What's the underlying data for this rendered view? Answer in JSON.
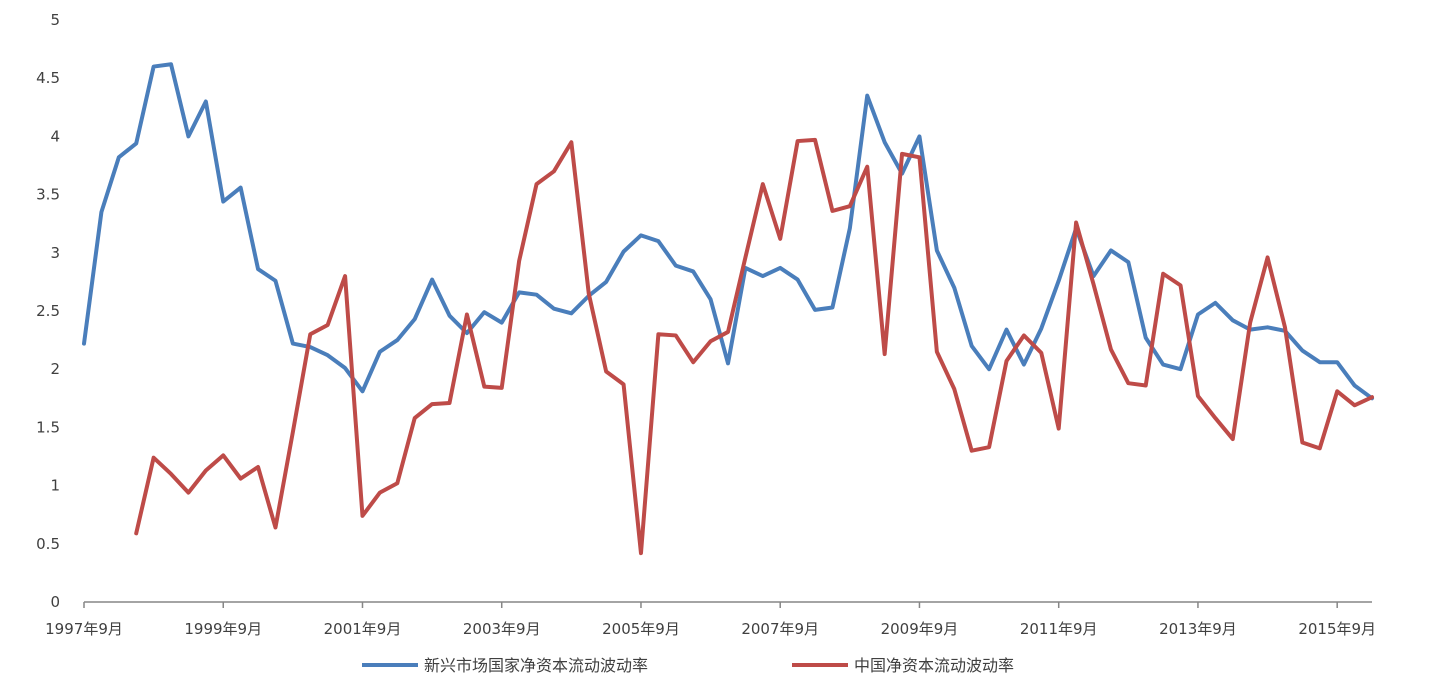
{
  "chart_data": {
    "type": "line",
    "title": "",
    "xlabel": "",
    "ylabel": "",
    "ylim": [
      0,
      5
    ],
    "y_ticks": [
      0,
      0.5,
      1,
      1.5,
      2,
      2.5,
      3,
      3.5,
      4,
      4.5,
      5
    ],
    "y_tick_labels": [
      "0",
      "0.5",
      "1",
      "1.5",
      "2",
      "2.5",
      "3",
      "3.5",
      "4",
      "4.5",
      "5"
    ],
    "x_tick_labels": [
      "1997年9月",
      "1999年9月",
      "2001年9月",
      "2003年9月",
      "2005年9月",
      "2007年9月",
      "2009年9月",
      "2011年9月",
      "2013年9月",
      "2015年9月"
    ],
    "x_tick_every": 8,
    "grid": false,
    "legend_position": "bottom",
    "series": [
      {
        "name": "新兴市场国家净资本流动波动率",
        "color": "#4a7ebb",
        "values": [
          2.22,
          3.35,
          3.82,
          3.94,
          4.6,
          4.62,
          4.0,
          4.3,
          3.44,
          3.56,
          2.86,
          2.76,
          2.22,
          2.19,
          2.12,
          2.01,
          1.81,
          2.15,
          2.25,
          2.43,
          2.77,
          2.46,
          2.31,
          2.49,
          2.4,
          2.66,
          2.64,
          2.52,
          2.48,
          2.63,
          2.75,
          3.01,
          3.15,
          3.1,
          2.89,
          2.84,
          2.6,
          2.05,
          2.87,
          2.8,
          2.87,
          2.77,
          2.51,
          2.53,
          3.21,
          4.35,
          3.95,
          3.68,
          4.0,
          3.02,
          2.7,
          2.2,
          2.0,
          2.34,
          2.04,
          2.35,
          2.76,
          3.21,
          2.8,
          3.02,
          2.92,
          2.27,
          2.04,
          2.0,
          2.47,
          2.57,
          2.42,
          2.34,
          2.36,
          2.33,
          2.16,
          2.06,
          2.06,
          1.86,
          1.75
        ]
      },
      {
        "name": "中国净资本流动波动率",
        "color": "#be4b48",
        "values": [
          null,
          null,
          null,
          0.59,
          1.24,
          1.1,
          0.94,
          1.13,
          1.26,
          1.06,
          1.16,
          0.64,
          1.46,
          2.3,
          2.38,
          2.8,
          0.74,
          0.94,
          1.02,
          1.58,
          1.7,
          1.71,
          2.47,
          1.85,
          1.84,
          2.93,
          3.59,
          3.7,
          3.95,
          2.65,
          1.98,
          1.87,
          0.42,
          2.3,
          2.29,
          2.06,
          2.24,
          2.32,
          2.96,
          3.59,
          3.12,
          3.96,
          3.97,
          3.36,
          3.4,
          3.74,
          2.13,
          3.85,
          3.82,
          2.15,
          1.83,
          1.3,
          1.33,
          2.07,
          2.29,
          2.14,
          1.49,
          3.26,
          2.73,
          2.17,
          1.88,
          1.86,
          2.82,
          2.72,
          1.77,
          1.58,
          1.4,
          2.4,
          2.96,
          2.36,
          1.37,
          1.32,
          1.81,
          1.69,
          1.76
        ]
      }
    ]
  }
}
